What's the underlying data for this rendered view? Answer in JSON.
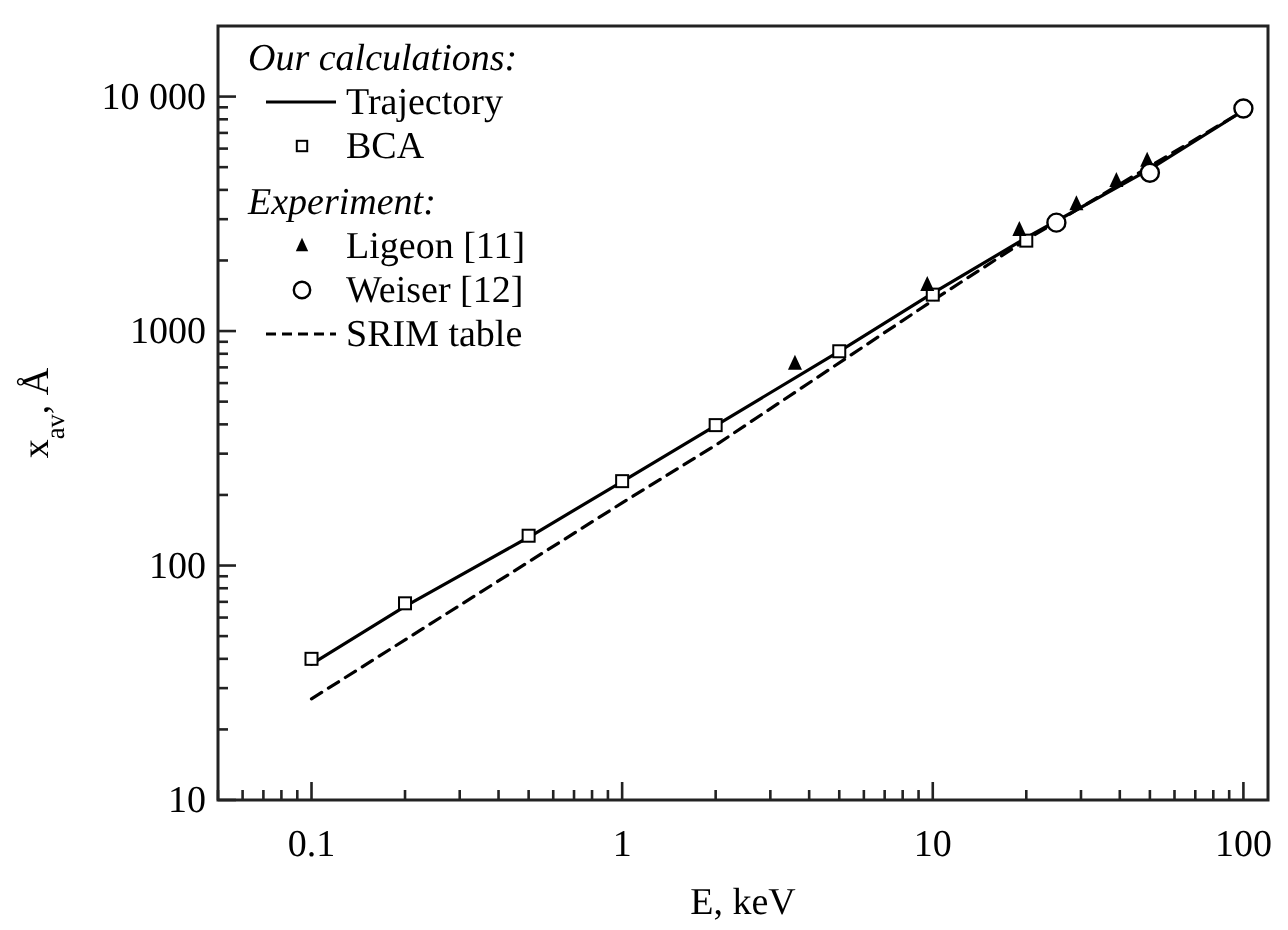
{
  "chart_data": {
    "type": "line",
    "xlabel": "E, keV",
    "ylabel": "x$_{av}$, Å",
    "log": "xy",
    "legend": "top left",
    "grid": false,
    "xlim": [
      0.05,
      120
    ],
    "ylim": [
      10,
      20000
    ],
    "xticks": [
      {
        "value": 0.05,
        "label": null
      },
      {
        "value": 0.06,
        "label": null
      },
      {
        "value": 0.07,
        "label": null
      },
      {
        "value": 0.08,
        "label": null
      },
      {
        "value": 0.09,
        "label": null
      },
      0.1,
      {
        "value": 0.2,
        "label": null
      },
      {
        "value": 0.3,
        "label": null
      },
      {
        "value": 0.4,
        "label": null
      },
      {
        "value": 0.5,
        "label": null
      },
      {
        "value": 0.6,
        "label": null
      },
      {
        "value": 0.7,
        "label": null
      },
      {
        "value": 0.8,
        "label": null
      },
      {
        "value": 0.9,
        "label": null
      },
      1,
      {
        "value": 2,
        "label": null
      },
      {
        "value": 3,
        "label": null
      },
      {
        "value": 4,
        "label": null
      },
      {
        "value": 5,
        "label": null
      },
      {
        "value": 6,
        "label": null
      },
      {
        "value": 7,
        "label": null
      },
      {
        "value": 8,
        "label": null
      },
      {
        "value": 9,
        "label": null
      },
      10,
      {
        "value": 20,
        "label": null
      },
      {
        "value": 30,
        "label": null
      },
      {
        "value": 40,
        "label": null
      },
      {
        "value": 50,
        "label": null
      },
      {
        "value": 60,
        "label": null
      },
      {
        "value": 70,
        "label": null
      },
      {
        "value": 80,
        "label": null
      },
      {
        "value": 90,
        "label": null
      },
      100
    ],
    "yticks": [
      10,
      {
        "value": 20,
        "label": null
      },
      {
        "value": 30,
        "label": null
      },
      {
        "value": 40,
        "label": null
      },
      {
        "value": 50,
        "label": null
      },
      {
        "value": 60,
        "label": null
      },
      {
        "value": 70,
        "label": null
      },
      {
        "value": 80,
        "label": null
      },
      {
        "value": 90,
        "label": null
      },
      100,
      {
        "value": 200,
        "label": null
      },
      {
        "value": 300,
        "label": null
      },
      {
        "value": 400,
        "label": null
      },
      {
        "value": 500,
        "label": null
      },
      {
        "value": 600,
        "label": null
      },
      {
        "value": 700,
        "label": null
      },
      {
        "value": 800,
        "label": null
      },
      {
        "value": 900,
        "label": null
      },
      1000,
      {
        "value": 2000,
        "label": null
      },
      {
        "value": 3000,
        "label": null
      },
      {
        "value": 4000,
        "label": null
      },
      {
        "value": 5000,
        "label": null
      },
      {
        "value": 6000,
        "label": null
      },
      {
        "value": 7000,
        "label": null
      },
      {
        "value": 8000,
        "label": null
      },
      {
        "value": 9000,
        "label": null
      },
      {
        "value": 10000,
        "label": "10 000"
      }
    ],
    "annotations": [
      "Our calculations:",
      "Experiment:"
    ],
    "series": [
      {
        "name": "Trajectory",
        "line_style": "solid",
        "color": "#000000",
        "x": [
          0.1,
          0.2,
          0.5,
          1,
          2,
          5,
          10,
          20,
          50,
          100
        ],
        "values": [
          38,
          67,
          132,
          228,
          395,
          820,
          1450,
          2500,
          4900,
          8700
        ]
      },
      {
        "name": "BCA",
        "type": "scatter",
        "marker": "square",
        "color": "#000000",
        "x": [
          0.1,
          0.2,
          0.5,
          1,
          2,
          5,
          10,
          20
        ],
        "values": [
          40,
          69,
          134,
          229,
          397,
          820,
          1430,
          2430
        ]
      },
      {
        "name": "Ligeon [11]",
        "type": "scatter",
        "marker": "triangle",
        "color": "#000000",
        "x": [
          3.6,
          9.6,
          19,
          29,
          39,
          49
        ],
        "values": [
          725,
          1570,
          2700,
          3470,
          4370,
          5330
        ]
      },
      {
        "name": "Weiser [12]",
        "type": "scatter",
        "marker": "circle",
        "color": "#000000",
        "x": [
          25,
          50,
          100
        ],
        "values": [
          2900,
          4730,
          8900
        ]
      },
      {
        "name": "SRIM table",
        "line_style": "dashed",
        "color": "#000000",
        "x": [
          0.1,
          1,
          2,
          10,
          20,
          100
        ],
        "values": [
          27,
          185,
          326,
          1350,
          2450,
          8700
        ]
      }
    ]
  }
}
